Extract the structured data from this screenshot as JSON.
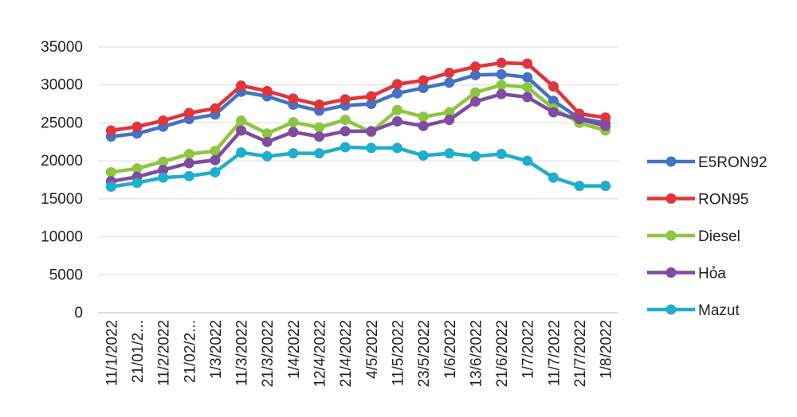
{
  "chart_data": {
    "type": "line",
    "title": "",
    "xlabel": "",
    "ylabel": "",
    "ylim": [
      0,
      35000
    ],
    "yticks": [
      0,
      5000,
      10000,
      15000,
      20000,
      25000,
      30000,
      35000
    ],
    "grid": true,
    "legend_position": "right",
    "categories": [
      "11/1/2022",
      "21/01/2...",
      "11/2/2022",
      "21/02/2...",
      "1/3/2022",
      "11/3/2022",
      "21/3/2022",
      "1/4/2022",
      "12/4/2022",
      "21/4/2022",
      "4/5/2022",
      "11/5/2022",
      "23/5/2022",
      "1/6/2022",
      "13/6/2022",
      "21/6/2022",
      "1/7/2022",
      "11/7/2022",
      "21/7/2022",
      "1/8/2022"
    ],
    "series": [
      {
        "name": "E5RON92",
        "color": "#4472C4",
        "values": [
          23200,
          23600,
          24500,
          25500,
          26100,
          29100,
          28500,
          27400,
          26600,
          27300,
          27500,
          28900,
          29600,
          30300,
          31300,
          31400,
          31000,
          27900,
          25600,
          25000
        ]
      },
      {
        "name": "RON95",
        "color": "#E0353A",
        "values": [
          24000,
          24500,
          25300,
          26300,
          26900,
          29900,
          29200,
          28200,
          27400,
          28100,
          28500,
          30100,
          30600,
          31600,
          32400,
          32900,
          32800,
          29800,
          26200,
          25700
        ]
      },
      {
        "name": "Diesel",
        "color": "#8DC640",
        "values": [
          18500,
          19000,
          19900,
          20900,
          21300,
          25300,
          23600,
          25100,
          24400,
          25400,
          23800,
          26700,
          25800,
          26400,
          29000,
          30000,
          29700,
          26900,
          25000,
          24000
        ]
      },
      {
        "name": "Hỏa",
        "color": "#7F4CA0",
        "values": [
          17300,
          17900,
          18800,
          19700,
          20100,
          24000,
          22500,
          23800,
          23200,
          23900,
          23900,
          25200,
          24600,
          25400,
          27800,
          28800,
          28400,
          26400,
          25500,
          24600
        ]
      },
      {
        "name": "Mazut",
        "color": "#1FAECB",
        "values": [
          16600,
          17100,
          17800,
          18000,
          18500,
          21100,
          20600,
          21000,
          21000,
          21800,
          21700,
          21700,
          20700,
          21000,
          20600,
          20900,
          20000,
          17800,
          16700,
          16700
        ]
      }
    ]
  }
}
